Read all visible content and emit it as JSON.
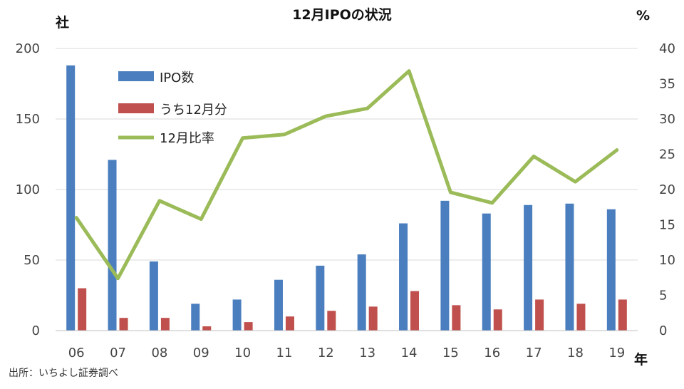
{
  "chart_data": {
    "type": "bar",
    "title": "12月IPOの状況",
    "y_left_unit": "社",
    "y_right_unit": "%",
    "x_unit": "年",
    "categories": [
      "06",
      "07",
      "08",
      "09",
      "10",
      "11",
      "12",
      "13",
      "14",
      "15",
      "16",
      "17",
      "18",
      "19"
    ],
    "ylim_left": [
      0,
      200
    ],
    "yticks_left": [
      "0",
      "50",
      "100",
      "150",
      "200"
    ],
    "ylim_right": [
      0,
      40
    ],
    "yticks_right": [
      "0",
      "5",
      "10",
      "15",
      "20",
      "25",
      "30",
      "35",
      "40"
    ],
    "series": [
      {
        "name": "IPO数",
        "type": "bar",
        "axis": "left",
        "color": "#4a7ebf",
        "values": [
          188,
          121,
          49,
          19,
          22,
          36,
          46,
          54,
          76,
          92,
          83,
          89,
          90,
          86
        ]
      },
      {
        "name": "うち12月分",
        "type": "bar",
        "axis": "left",
        "color": "#c0504d",
        "values": [
          30,
          9,
          9,
          3,
          6,
          10,
          14,
          17,
          28,
          18,
          15,
          22,
          19,
          22
        ]
      },
      {
        "name": "12月比率",
        "type": "line",
        "axis": "right",
        "color": "#9bbb59",
        "values": [
          16.0,
          7.4,
          18.4,
          15.8,
          27.3,
          27.8,
          30.4,
          31.5,
          36.8,
          19.6,
          18.1,
          24.7,
          21.1,
          25.6
        ]
      }
    ],
    "grid": true,
    "legend_position": "top-left"
  },
  "source_note": "出所：いちよし証券調べ"
}
